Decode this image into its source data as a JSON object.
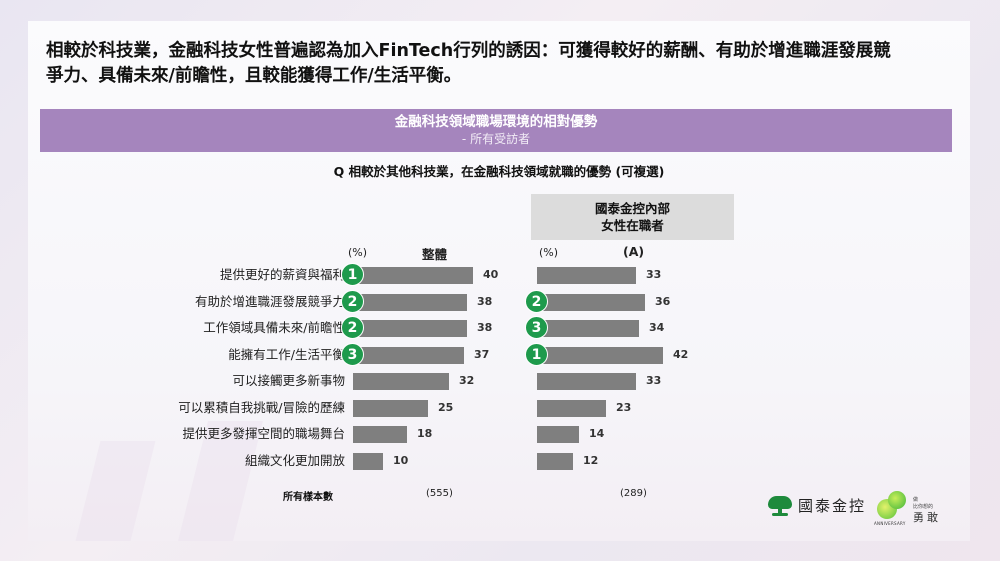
{
  "headline": {
    "line1": "相較於科技業，金融科技女性普遍認為加入FinTech行列的誘因：可獲得較好的薪酬、有助於增進職涯發展競",
    "line2": "爭力、具備未來/前瞻性，且較能獲得工作/生活平衡。"
  },
  "banner": {
    "title": "金融科技領域職場環境的相對優勢",
    "subtitle": "- 所有受訪者"
  },
  "question": "Q 相較於其他科技業，在金融科技領域就職的優勢 (可複選)",
  "group_header": {
    "line1": "國泰金控內部",
    "line2": "女性在職者"
  },
  "columns": {
    "left_unit": "(%)",
    "left_title": "整體",
    "right_unit": "(%)",
    "right_title": "(A)"
  },
  "colors": {
    "banner": "#a585bd",
    "bar": "#7f7f7f",
    "rank_badge": "#1e9a4c",
    "group_header_bg": "#dcdcdc"
  },
  "rows": [
    {
      "label": "提供更好的薪資與福利",
      "overall": "40",
      "overall_rank": "1",
      "cathay": "33",
      "cathay_rank": ""
    },
    {
      "label": "有助於增進職涯發展競爭力",
      "overall": "38",
      "overall_rank": "2",
      "cathay": "36",
      "cathay_rank": "2"
    },
    {
      "label": "工作領域具備未來/前瞻性",
      "overall": "38",
      "overall_rank": "2",
      "cathay": "34",
      "cathay_rank": "3"
    },
    {
      "label": "能擁有工作/生活平衡",
      "overall": "37",
      "overall_rank": "3",
      "cathay": "42",
      "cathay_rank": "1"
    },
    {
      "label": "可以接觸更多新事物",
      "overall": "32",
      "overall_rank": "",
      "cathay": "33",
      "cathay_rank": ""
    },
    {
      "label": "可以累積自我挑戰/冒險的歷練",
      "overall": "25",
      "overall_rank": "",
      "cathay": "23",
      "cathay_rank": ""
    },
    {
      "label": "提供更多發揮空間的職場舞台",
      "overall": "18",
      "overall_rank": "",
      "cathay": "14",
      "cathay_rank": ""
    },
    {
      "label": "組織文化更加開放",
      "overall": "10",
      "overall_rank": "",
      "cathay": "12",
      "cathay_rank": ""
    }
  ],
  "sample": {
    "label": "所有樣本數",
    "overall": "(555)",
    "cathay": "(289)"
  },
  "footer": {
    "brand": "國泰金控",
    "anniversary": "ANNIVERSARY",
    "slogan_small1": "做",
    "slogan_small2": "比你想的",
    "slogan_big": "勇敢"
  },
  "chart_data": {
    "type": "bar",
    "orientation": "horizontal",
    "title": "金融科技領域職場環境的相對優勢",
    "subtitle": "- 所有受訪者",
    "question": "Q 相較於其他科技業，在金融科技領域就職的優勢 (可複選)",
    "unit": "%",
    "categories": [
      "提供更好的薪資與福利",
      "有助於增進職涯發展競爭力",
      "工作領域具備未來/前瞻性",
      "能擁有工作/生活平衡",
      "可以接觸更多新事物",
      "可以累積自我挑戰/冒險的歷練",
      "提供更多發揮空間的職場舞台",
      "組織文化更加開放"
    ],
    "series": [
      {
        "name": "整體",
        "sample_size": 555,
        "values": [
          40,
          38,
          38,
          37,
          32,
          25,
          18,
          10
        ],
        "ranks": [
          1,
          2,
          2,
          3,
          null,
          null,
          null,
          null
        ]
      },
      {
        "name": "國泰金控內部女性在職者 (A)",
        "sample_size": 289,
        "values": [
          33,
          36,
          34,
          42,
          33,
          23,
          14,
          12
        ],
        "ranks": [
          null,
          2,
          3,
          1,
          null,
          null,
          null,
          null
        ]
      }
    ],
    "data_labels": true,
    "grid": false,
    "legend": "none"
  }
}
